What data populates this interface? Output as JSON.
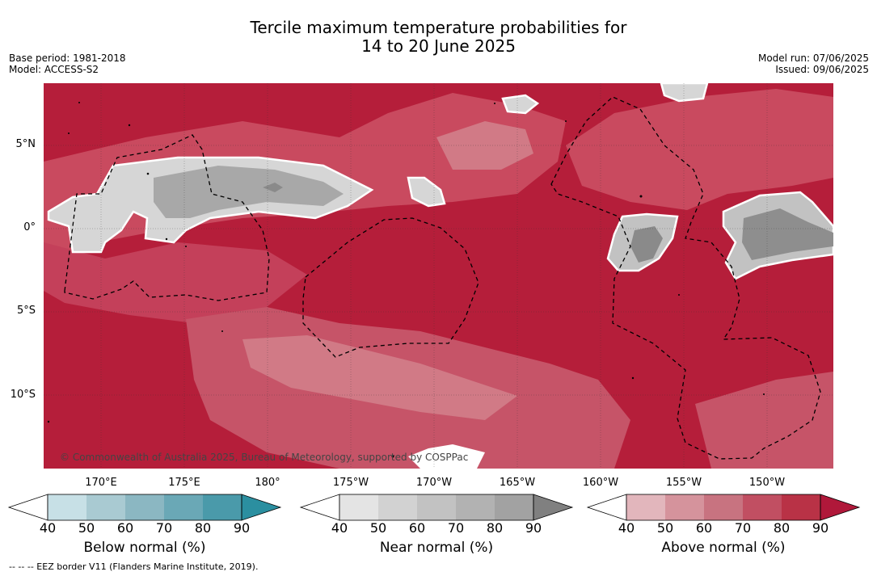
{
  "header": {
    "title_line1": "Tercile maximum temperature probabilities for",
    "title_line2": "14 to 20 June 2025",
    "base_period": "Base period: 1981-2018",
    "model": "Model: ACCESS-S2",
    "model_run": "Model run: 07/06/2025",
    "issued": "Issued: 09/06/2025"
  },
  "map": {
    "lat_labels": [
      "5°N",
      "0°",
      "5°S",
      "10°S"
    ],
    "lon_labels": [
      "170°E",
      "175°E",
      "180°",
      "175°W",
      "170°W",
      "165°W",
      "160°W",
      "155°W",
      "150°W"
    ],
    "copyright": "© Commonwealth of Australia 2025, Bureau of Meteorology, supported by COSPPac",
    "colors": {
      "background_above": "#b51e3a",
      "ocean_mid": "#c94a5f"
    }
  },
  "legend": {
    "ticks": [
      "40",
      "50",
      "60",
      "70",
      "80",
      "90"
    ],
    "below": {
      "label": "Below normal (%)",
      "colors": [
        "#ffffff",
        "#c7e0e6",
        "#a9cad2",
        "#8bb7c2",
        "#6aa8b6",
        "#4a9aaa",
        "#2b8fa0"
      ]
    },
    "near": {
      "label": "Near normal (%)",
      "colors": [
        "#ffffff",
        "#e4e4e4",
        "#d2d2d2",
        "#c2c2c2",
        "#b2b2b2",
        "#a2a2a2",
        "#808080"
      ]
    },
    "above": {
      "label": "Above normal (%)",
      "colors": [
        "#ffffff",
        "#e2b6bc",
        "#d5939c",
        "#c87380",
        "#c14f62",
        "#b93246",
        "#b0183a"
      ]
    }
  },
  "footer": {
    "eez_note": "-- -- -- EEZ border V11 (Flanders Marine Institute, 2019)."
  }
}
